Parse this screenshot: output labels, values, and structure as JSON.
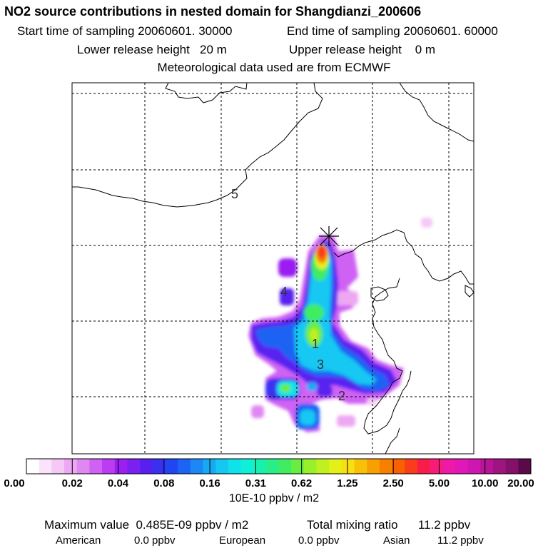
{
  "header": {
    "title": "NO2 source contributions in nested domain for Shangdianzi_200606",
    "start_label": "Start time of sampling 20060601. 30000",
    "end_label": "End time of sampling 20060601. 60000",
    "lower_label": "Lower release height   20 m",
    "upper_label": "Upper release height    0 m",
    "met_label": "Meteorological data used are from ECMWF"
  },
  "colorbar": {
    "unit": "10E-10 ppbv / m2",
    "tick_labels": [
      "0.00",
      "0.02",
      "0.04",
      "0.08",
      "0.16",
      "0.31",
      "0.62",
      "1.25",
      "2.50",
      "5.00",
      "10.00",
      "20.00"
    ],
    "colors": [
      "#ffffff",
      "#fbe4fb",
      "#f5c8f6",
      "#eea8f3",
      "#e088f2",
      "#cf62f4",
      "#bb3cf2",
      "#9a1ff0",
      "#7a20f0",
      "#5820f0",
      "#3a30f0",
      "#2245f2",
      "#1c64f4",
      "#1c88f6",
      "#16aaf4",
      "#14c8f2",
      "#10e2ec",
      "#10f0d8",
      "#18f0b0",
      "#28ee88",
      "#40ec60",
      "#68ee40",
      "#98f028",
      "#c0f020",
      "#e4f018",
      "#f8e010",
      "#f8c008",
      "#f8a000",
      "#f88000",
      "#f86000",
      "#f83c1c",
      "#f81c48",
      "#f81c78",
      "#f018a8",
      "#e018b8",
      "#d016b0",
      "#b81498",
      "#a01482",
      "#84106a",
      "#5a0a4a"
    ]
  },
  "chart_data": {
    "type": "heatmap",
    "title": "NO2 source contributions in nested domain for Shangdianzi_200606",
    "colorbar_unit": "10E-10 ppbv / m2",
    "colorbar_levels": [
      0.0,
      0.02,
      0.04,
      0.08,
      0.16,
      0.31,
      0.62,
      1.25,
      2.5,
      5.0,
      10.0,
      20.0
    ],
    "receptor": "Shangdianzi",
    "region_markers": [
      "1",
      "2",
      "3",
      "4",
      "5"
    ],
    "max_value": "0.485E-09 ppbv / m2",
    "total_mixing_ratio": "11.2 ppbv",
    "regional_contributions": [
      {
        "region": "American",
        "value": "0.0 ppbv"
      },
      {
        "region": "European",
        "value": "0.0 ppbv"
      },
      {
        "region": "Asian",
        "value": "11.2 ppbv"
      }
    ]
  },
  "map": {
    "region_labels": [
      "1",
      "2",
      "3",
      "4",
      "5"
    ]
  },
  "footer": {
    "max_label": "Maximum value  0.485E-09 ppbv / m2",
    "total_label": "Total mixing ratio      11.2 ppbv",
    "american_label": "American",
    "american_value": "0.0 ppbv",
    "european_label": "European",
    "european_value": "0.0 ppbv",
    "asian_label": "Asian",
    "asian_value": "11.2 ppbv"
  }
}
